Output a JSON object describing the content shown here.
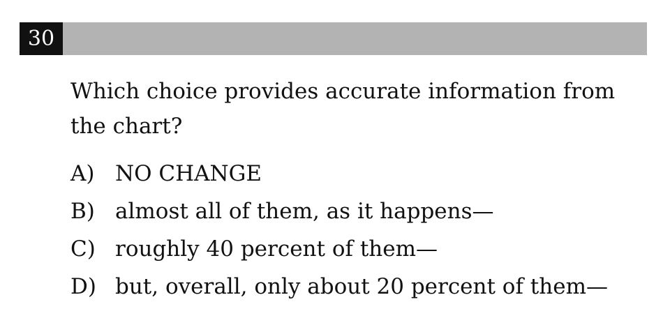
{
  "question": {
    "number": "30",
    "prompt": "Which choice provides accurate information from the chart?"
  },
  "choices": [
    {
      "letter": "A)",
      "text": "NO CHANGE"
    },
    {
      "letter": "B)",
      "text": "almost all of them, as it happens—"
    },
    {
      "letter": "C)",
      "text": "roughly 40 percent of them—"
    },
    {
      "letter": "D)",
      "text": "but, overall, only about 20 percent of them—"
    }
  ],
  "colors": {
    "header_bar": "#b3b3b3",
    "number_box": "#111111",
    "number_text": "#ffffff",
    "text": "#111111"
  }
}
